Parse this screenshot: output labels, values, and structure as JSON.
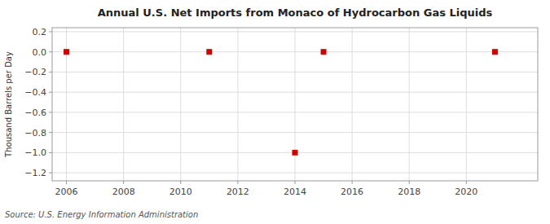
{
  "chart_data": {
    "type": "scatter",
    "title": "Annual U.S. Net Imports from Monaco of Hydrocarbon Gas Liquids",
    "ylabel": "Thousand Barrels per Day",
    "annotations": [
      "Source: U.S. Energy Information Administration"
    ],
    "x": [
      2006,
      2011,
      2014,
      2015,
      2021
    ],
    "values": [
      0.0,
      0.0,
      -1.0,
      0.0,
      0.0
    ],
    "color": "#cc0000",
    "marker": "square",
    "xlim": [
      2005.5,
      2022.5
    ],
    "ylim": [
      -1.28,
      0.24
    ],
    "xticks": [
      2006,
      2008,
      2010,
      2012,
      2014,
      2016,
      2018,
      2020
    ],
    "yticks": [
      0.2,
      {
        "value": 0.0,
        "label": "0.0"
      },
      {
        "value": -0.2,
        "label": "−0.2"
      },
      {
        "value": -0.4,
        "label": "−0.4"
      },
      {
        "value": -0.6,
        "label": "−0.6"
      },
      {
        "value": -0.8,
        "label": "−0.8"
      },
      {
        "value": -1.0,
        "label": "−1.0"
      },
      {
        "value": -1.2,
        "label": "−1.2"
      }
    ],
    "grid": true
  }
}
